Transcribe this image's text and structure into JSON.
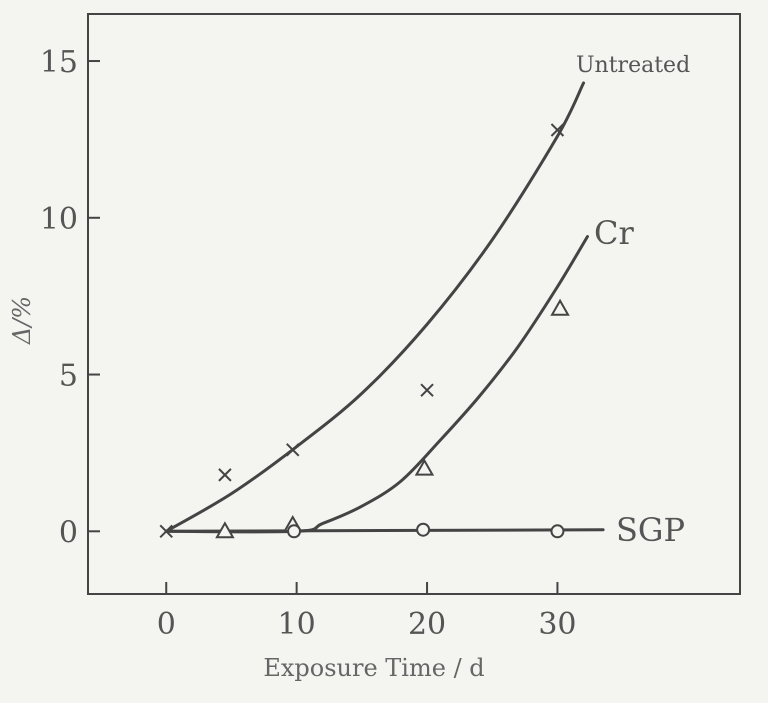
{
  "chart_data": {
    "type": "scatter",
    "xlabel": "Exposure Time / d",
    "ylabel": "Δ/%",
    "xlim": [
      -6,
      44
    ],
    "ylim": [
      -2,
      16.5
    ],
    "x_ticks": [
      0,
      10,
      20,
      30
    ],
    "y_ticks": [
      0,
      5,
      10,
      15
    ],
    "grid": false,
    "line_color": "#444444",
    "background_color": "#f4f4f1",
    "series": [
      {
        "name": "Untreated",
        "marker": "cross",
        "points": [
          [
            0,
            0
          ],
          [
            4.5,
            1.8
          ],
          [
            9.7,
            2.6
          ],
          [
            20,
            4.5
          ],
          [
            30,
            12.8
          ]
        ],
        "fit_curve": [
          [
            0,
            0
          ],
          [
            5,
            1.2
          ],
          [
            10,
            2.7
          ],
          [
            15,
            4.4
          ],
          [
            20,
            6.6
          ],
          [
            25,
            9.3
          ],
          [
            30,
            12.6
          ],
          [
            32,
            14.3
          ]
        ]
      },
      {
        "name": "Cr",
        "marker": "triangle",
        "points": [
          [
            4.5,
            0
          ],
          [
            9.7,
            0.2
          ],
          [
            19.8,
            2.0
          ],
          [
            30.2,
            7.1
          ]
        ],
        "fit_curve": [
          [
            0,
            0
          ],
          [
            10,
            0
          ],
          [
            12,
            0.25
          ],
          [
            15,
            0.8
          ],
          [
            18,
            1.6
          ],
          [
            21,
            2.9
          ],
          [
            24,
            4.3
          ],
          [
            27,
            5.9
          ],
          [
            30,
            7.8
          ],
          [
            32.3,
            9.4
          ]
        ]
      },
      {
        "name": "SGP",
        "marker": "circle",
        "points": [
          [
            9.8,
            0
          ],
          [
            19.7,
            0.05
          ],
          [
            30,
            0
          ]
        ],
        "fit_curve": [
          [
            0,
            0
          ],
          [
            33.5,
            0.05
          ]
        ]
      }
    ]
  }
}
